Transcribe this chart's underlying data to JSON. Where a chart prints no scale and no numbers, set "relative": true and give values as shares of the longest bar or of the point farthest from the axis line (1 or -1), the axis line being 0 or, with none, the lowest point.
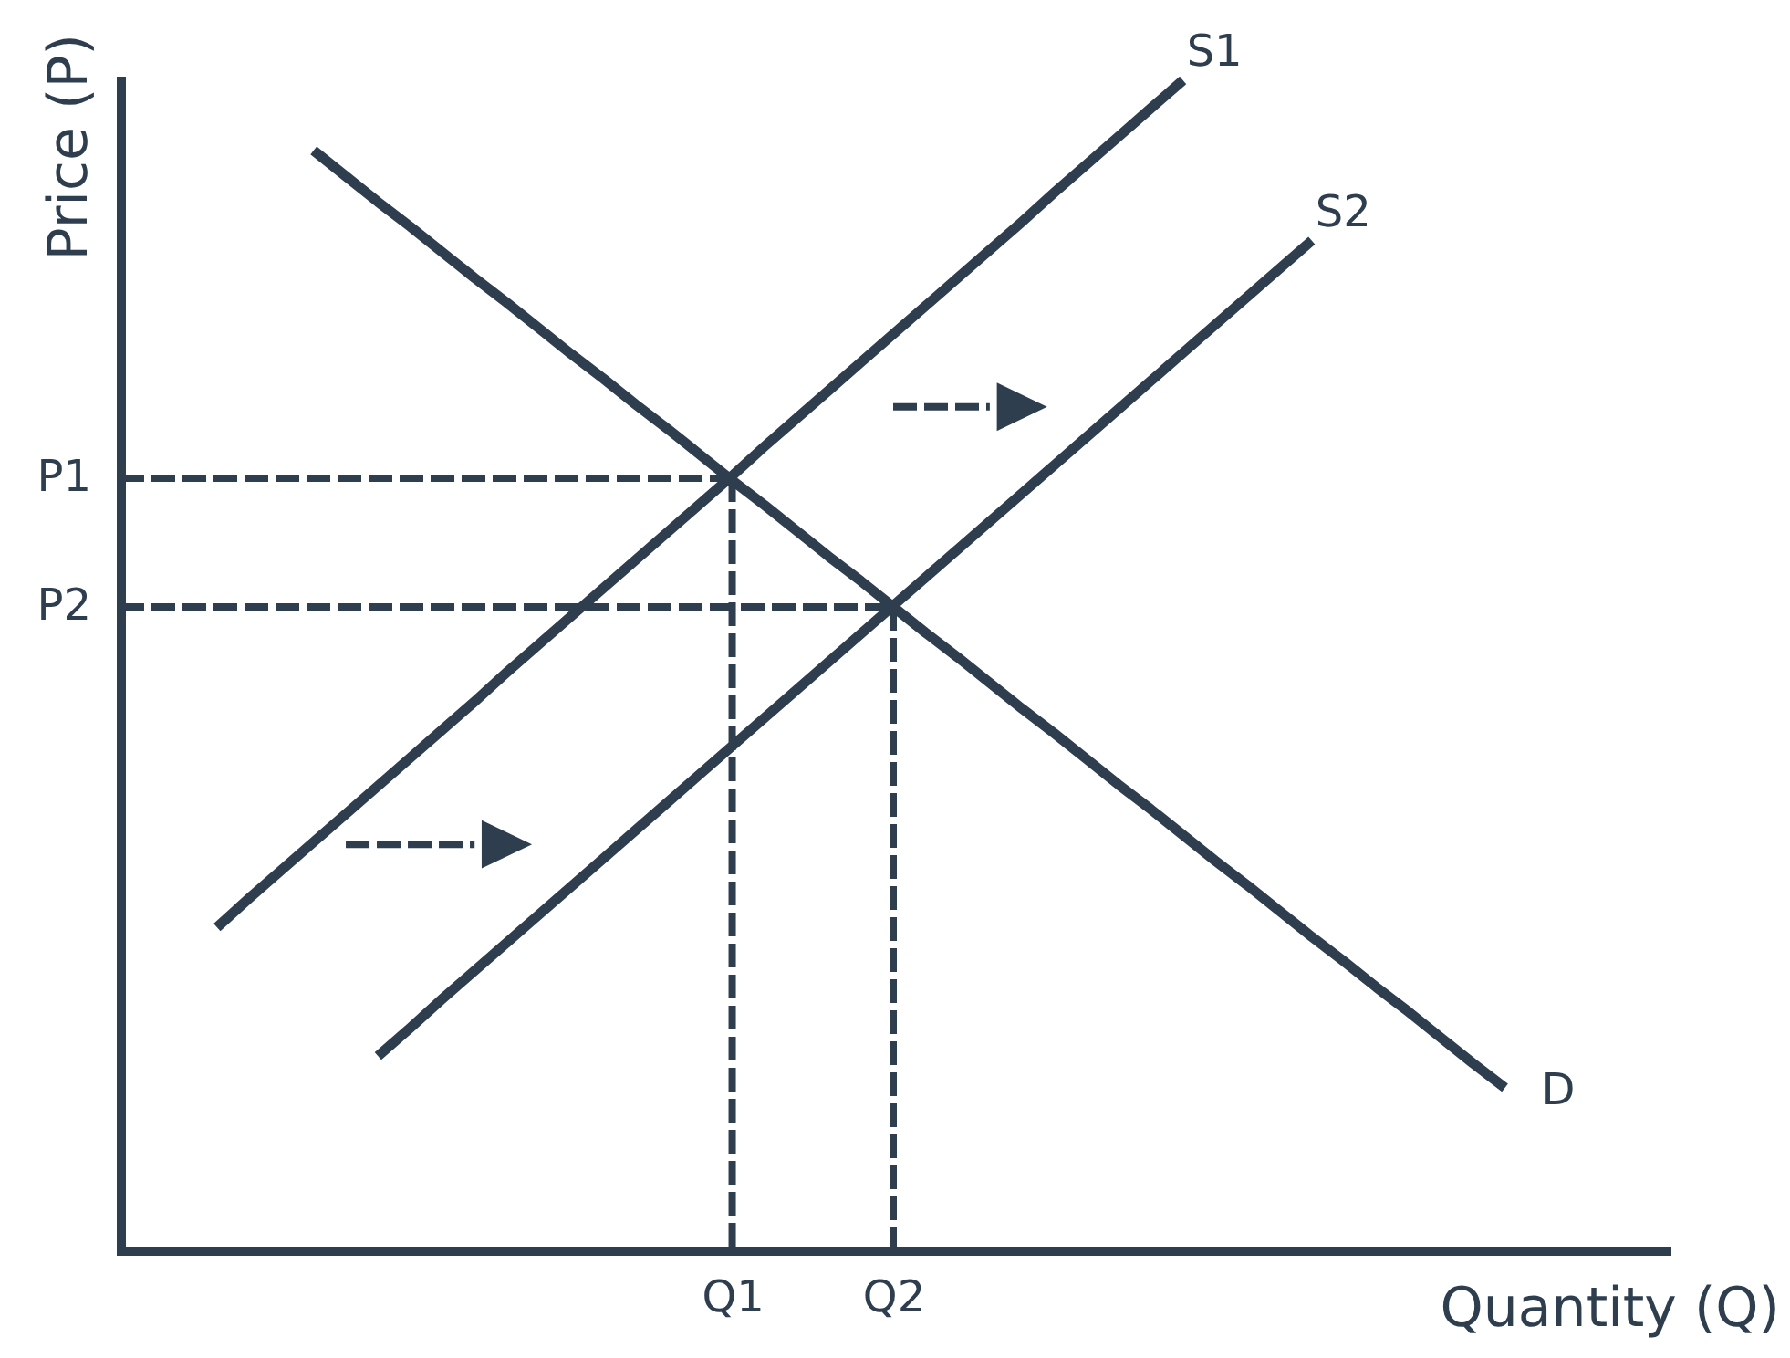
{
  "chart_data": {
    "type": "line",
    "xlabel": "Quantity (Q)",
    "ylabel": "Price (P)",
    "relative": true,
    "categories": [
      null,
      null,
      null,
      null,
      null,
      null,
      null,
      null,
      null,
      null,
      null,
      null,
      null,
      null,
      null,
      null,
      null,
      null,
      null,
      "Q1",
      null,
      null,
      null,
      null,
      "Q2",
      null,
      null,
      null,
      null,
      null,
      null,
      null,
      null,
      null,
      null,
      null,
      null,
      null,
      null,
      null,
      null,
      null,
      null,
      null,
      null,
      null,
      null,
      null,
      null
    ],
    "series": [
      {
        "name": "D",
        "color": "#2e3e4f",
        "values": [
          null,
          null,
          null,
          null,
          null,
          null,
          0.94,
          0.918,
          0.896,
          0.875,
          0.853,
          0.831,
          0.81,
          0.788,
          0.766,
          0.745,
          0.723,
          0.702,
          0.68,
          0.658,
          0.637,
          0.615,
          0.593,
          0.572,
          0.55,
          0.528,
          0.507,
          0.485,
          0.463,
          0.442,
          0.42,
          0.398,
          0.377,
          0.355,
          0.333,
          0.312,
          0.29,
          0.268,
          0.247,
          0.225,
          0.204,
          0.182,
          0.16,
          0.139,
          null,
          null,
          null,
          null,
          null
        ]
      },
      {
        "name": "S1",
        "color": "#2e3e4f",
        "values": [
          null,
          null,
          null,
          0.276,
          0.301,
          0.325,
          0.349,
          0.373,
          0.397,
          0.421,
          0.445,
          0.469,
          0.494,
          0.518,
          0.542,
          0.566,
          0.59,
          0.614,
          0.638,
          0.662,
          0.687,
          0.711,
          0.735,
          0.759,
          0.783,
          0.807,
          0.831,
          0.855,
          0.879,
          0.904,
          0.928,
          0.952,
          0.976,
          1,
          null,
          null,
          null,
          null,
          null,
          null,
          null,
          null,
          null,
          null,
          null,
          null,
          null,
          null,
          null
        ]
      },
      {
        "name": "S2",
        "color": "#2e3e4f",
        "values": [
          null,
          null,
          null,
          null,
          null,
          null,
          null,
          null,
          0.166,
          0.19,
          0.215,
          0.239,
          0.263,
          0.287,
          0.311,
          0.335,
          0.359,
          0.383,
          0.407,
          0.431,
          0.455,
          0.479,
          0.503,
          0.527,
          0.551,
          0.575,
          0.599,
          0.623,
          0.647,
          0.671,
          0.695,
          0.719,
          0.743,
          0.767,
          0.791,
          0.815,
          0.839,
          0.863,
          null,
          null,
          null,
          null,
          null,
          null,
          null,
          null,
          null,
          null,
          null
        ]
      },
      {
        "name": "P1",
        "color": "#2e3e4f",
        "line_style": "dashed",
        "values": [
          0.66,
          0.66,
          0.66,
          0.66,
          0.66,
          0.66,
          0.66,
          0.66,
          0.66,
          0.66,
          0.66,
          0.66,
          0.66,
          0.66,
          0.66,
          0.66,
          0.66,
          0.66,
          0.66,
          0.66,
          null,
          null,
          null,
          null,
          null,
          null,
          null,
          null,
          null,
          null,
          null,
          null,
          null,
          null,
          null,
          null,
          null,
          null,
          null,
          null,
          null,
          null,
          null,
          null,
          null,
          null,
          null,
          null,
          null
        ]
      },
      {
        "name": "P2",
        "color": "#2e3e4f",
        "line_style": "dashed",
        "values": [
          0.55,
          0.55,
          0.55,
          0.55,
          0.55,
          0.55,
          0.55,
          0.55,
          0.55,
          0.55,
          0.55,
          0.55,
          0.55,
          0.55,
          0.55,
          0.55,
          0.55,
          0.55,
          0.55,
          0.55,
          0.55,
          0.55,
          0.55,
          0.55,
          0.55,
          null,
          null,
          null,
          null,
          null,
          null,
          null,
          null,
          null,
          null,
          null,
          null,
          null,
          null,
          null,
          null,
          null,
          null,
          null,
          null,
          null,
          null,
          null,
          null
        ]
      },
      {
        "color": "#2e3e4f",
        "line_style": "dashed",
        "x": [
          "Q1",
          "Q1"
        ],
        "values": [
          0.66,
          0
        ]
      },
      {
        "color": "#2e3e4f",
        "line_style": "dashed",
        "x": [
          "Q2",
          "Q2"
        ],
        "values": [
          0.55,
          0
        ]
      },
      {
        "color": "#2e3e4f",
        "line_style": "dashed",
        "values": [
          null,
          null,
          null,
          null,
          null,
          null,
          null,
          0.347,
          0.347,
          0.347,
          0.347,
          0.347,
          null,
          null,
          null,
          null,
          null,
          null,
          null,
          null,
          null,
          null,
          null,
          null,
          null,
          null,
          null,
          null,
          null,
          null,
          null,
          null,
          null,
          null,
          null,
          null,
          null,
          null,
          null,
          null,
          null,
          null,
          null,
          null,
          null,
          null,
          null,
          null,
          null
        ]
      },
      {
        "type": "scatter",
        "marker": "triangle",
        "color": "#2e3e4f",
        "values": [
          null,
          null,
          null,
          null,
          null,
          null,
          null,
          null,
          null,
          null,
          null,
          null,
          0.347,
          null,
          null,
          null,
          null,
          null,
          null,
          null,
          null,
          null,
          null,
          null,
          null,
          null,
          null,
          null,
          null,
          null,
          null,
          null,
          null,
          null,
          null,
          null,
          null,
          null,
          null,
          null,
          null,
          null,
          null,
          null,
          null,
          null,
          null,
          null,
          null
        ]
      },
      {
        "color": "#2e3e4f",
        "line_style": "dashed",
        "values": [
          null,
          null,
          null,
          null,
          null,
          null,
          null,
          null,
          null,
          null,
          null,
          null,
          null,
          null,
          null,
          null,
          null,
          null,
          null,
          null,
          null,
          null,
          null,
          null,
          0.721,
          0.721,
          0.721,
          0.721,
          null,
          null,
          null,
          null,
          null,
          null,
          null,
          null,
          null,
          null,
          null,
          null,
          null,
          null,
          null,
          null,
          null,
          null,
          null,
          null,
          null
        ]
      },
      {
        "type": "scatter",
        "marker": "triangle",
        "color": "#2e3e4f",
        "values": [
          null,
          null,
          null,
          null,
          null,
          null,
          null,
          null,
          null,
          null,
          null,
          null,
          null,
          null,
          null,
          null,
          null,
          null,
          null,
          null,
          null,
          null,
          null,
          null,
          null,
          null,
          null,
          null,
          0.721,
          null,
          null,
          null,
          null,
          null,
          null,
          null,
          null,
          null,
          null,
          null,
          null,
          null,
          null,
          null,
          null,
          null,
          null,
          null,
          null
        ]
      }
    ]
  }
}
